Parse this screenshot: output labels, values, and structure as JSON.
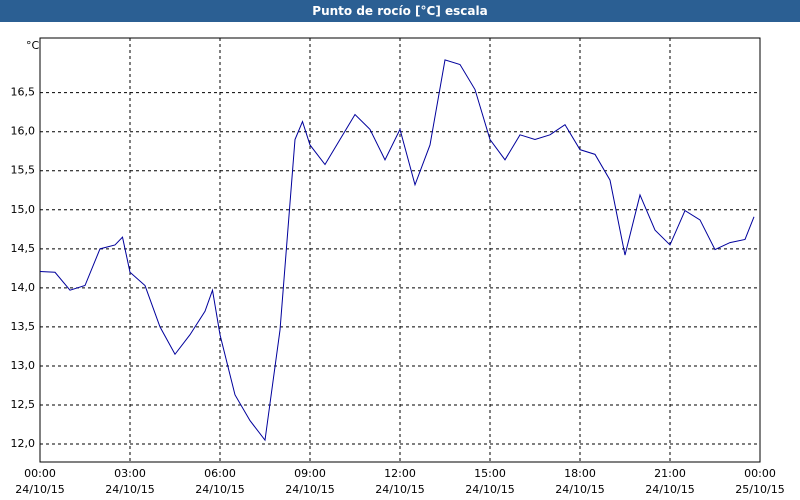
{
  "chart_data": {
    "type": "line",
    "title": "Punto de rocío [°C] escala",
    "y_label": "°C",
    "x": [
      0,
      0.5,
      1,
      1.5,
      2,
      2.5,
      2.75,
      3,
      3.5,
      4,
      4.5,
      5,
      5.5,
      5.75,
      6,
      6.5,
      7,
      7.5,
      8,
      8.5,
      8.75,
      9,
      9.5,
      10,
      10.5,
      11,
      11.5,
      12,
      12.5,
      13,
      13.5,
      14,
      14.5,
      15,
      15.5,
      16,
      16.5,
      17,
      17.5,
      18,
      18.5,
      19,
      19.5,
      20,
      20.5,
      21,
      21.5,
      22,
      22.5,
      23,
      23.5,
      23.8
    ],
    "series": [
      {
        "name": "Punto de rocío",
        "color": "#00009c",
        "values": [
          14.21,
          14.2,
          13.97,
          14.03,
          14.5,
          14.55,
          14.65,
          14.2,
          14.03,
          13.5,
          13.15,
          13.4,
          13.7,
          13.97,
          13.4,
          12.63,
          12.3,
          12.05,
          13.46,
          15.9,
          16.13,
          15.83,
          15.58,
          15.9,
          16.22,
          16.03,
          15.64,
          16.03,
          15.32,
          15.83,
          16.92,
          16.86,
          16.54,
          15.9,
          15.64,
          15.96,
          15.9,
          15.96,
          16.09,
          15.77,
          15.71,
          15.38,
          14.42,
          15.19,
          14.74,
          14.55,
          14.99,
          14.87,
          14.49,
          14.58,
          14.62,
          14.91
        ]
      }
    ],
    "xlim": [
      0,
      24
    ],
    "ylim": [
      11.77,
      17.2
    ],
    "xticks": [
      {
        "value": 0,
        "label": "00:00",
        "date": "24/10/15"
      },
      {
        "value": 3,
        "label": "03:00",
        "date": "24/10/15"
      },
      {
        "value": 6,
        "label": "06:00",
        "date": "24/10/15"
      },
      {
        "value": 9,
        "label": "09:00",
        "date": "24/10/15"
      },
      {
        "value": 12,
        "label": "12:00",
        "date": "24/10/15"
      },
      {
        "value": 15,
        "label": "15:00",
        "date": "24/10/15"
      },
      {
        "value": 18,
        "label": "18:00",
        "date": "24/10/15"
      },
      {
        "value": 21,
        "label": "21:00",
        "date": "24/10/15"
      },
      {
        "value": 24,
        "label": "00:00",
        "date": "25/10/15"
      }
    ],
    "yticks": [
      {
        "value": 12,
        "label": "12,0"
      },
      {
        "value": 12.5,
        "label": "12,5"
      },
      {
        "value": 13,
        "label": "13,0"
      },
      {
        "value": 13.5,
        "label": "13,5"
      },
      {
        "value": 14,
        "label": "14,0"
      },
      {
        "value": 14.5,
        "label": "14,5"
      },
      {
        "value": 15,
        "label": "15,0"
      },
      {
        "value": 15.5,
        "label": "15,5"
      },
      {
        "value": 16,
        "label": "16,0"
      },
      {
        "value": 16.5,
        "label": "16,5"
      }
    ],
    "grid": true
  }
}
